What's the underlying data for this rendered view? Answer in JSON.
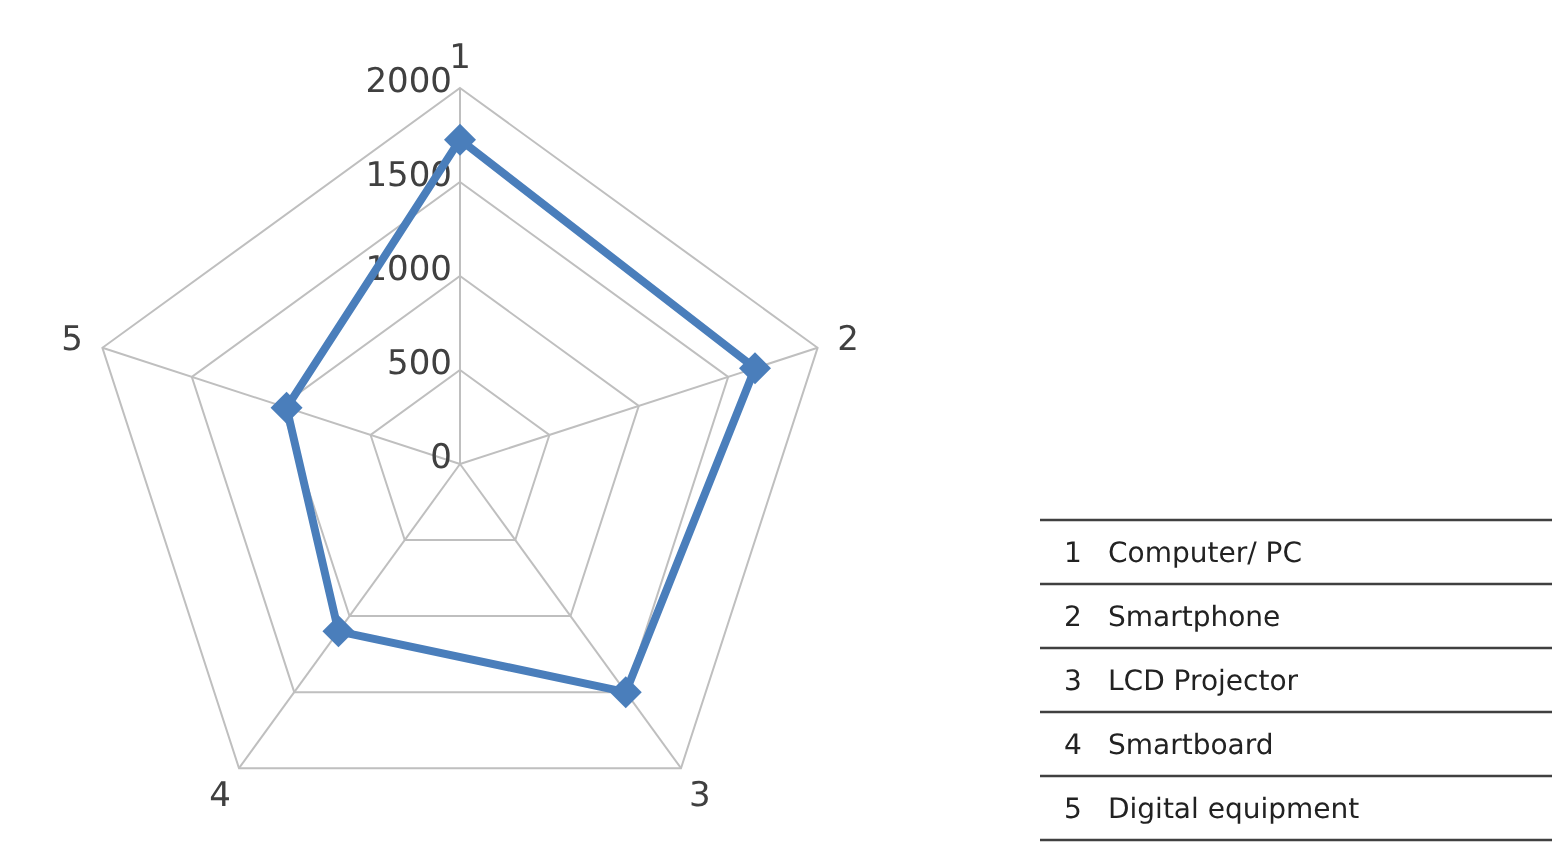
{
  "chart_data": {
    "type": "radar",
    "categories": [
      "1",
      "2",
      "3",
      "4",
      "5"
    ],
    "series": [
      {
        "color": "#4a7ebb",
        "values": [
          1725,
          1650,
          1500,
          1100,
          970
        ]
      }
    ],
    "ylim": [
      0,
      2000
    ],
    "yticks": [
      0,
      500,
      1000,
      1500,
      2000
    ],
    "grid": true,
    "marker": "diamond",
    "annotations": [
      "Computer/ PC",
      "Smartphone",
      "LCD Projector",
      "Smartboard",
      "Digital equipment"
    ]
  }
}
